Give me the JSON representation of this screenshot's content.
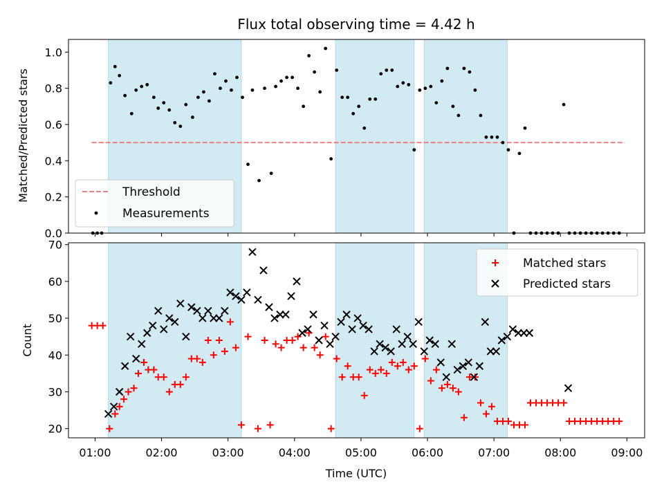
{
  "chart_data": [
    {
      "type": "scatter",
      "title": "Flux total observing time = 4.42 h",
      "xlabel": "",
      "ylabel": "Matched/Predicted stars",
      "xlim": [
        "00:36",
        "09:16"
      ],
      "ylim": [
        0.0,
        1.07
      ],
      "yticks": [
        "0.0",
        "0.2",
        "0.4",
        "0.6",
        "0.8",
        "1.0"
      ],
      "threshold": {
        "name": "Threshold",
        "value": 0.5,
        "x_range": [
          "00:57",
          "08:58"
        ],
        "color": "#f08080"
      },
      "shaded_intervals": [
        [
          "01:12",
          "03:12"
        ],
        [
          "04:37",
          "05:48"
        ],
        [
          "05:57",
          "07:12"
        ]
      ],
      "shade_color": "#add8e6",
      "legend": {
        "placement": "lower-left",
        "entries": [
          "Threshold",
          "Measurements"
        ]
      },
      "series": [
        {
          "name": "Measurements",
          "color": "#000000",
          "x": [
            "00:58",
            "01:02",
            "01:06",
            "01:14",
            "01:18",
            "01:22",
            "01:27",
            "01:33",
            "01:37",
            "01:42",
            "01:47",
            "01:53",
            "01:57",
            "02:02",
            "02:07",
            "02:12",
            "02:17",
            "02:22",
            "02:28",
            "02:33",
            "02:38",
            "02:43",
            "02:48",
            "02:53",
            "02:58",
            "03:03",
            "03:08",
            "03:13",
            "03:18",
            "03:22",
            "03:28",
            "03:33",
            "03:39",
            "03:43",
            "03:48",
            "03:53",
            "03:58",
            "04:03",
            "04:08",
            "04:13",
            "04:18",
            "04:23",
            "04:28",
            "04:33",
            "04:38",
            "04:43",
            "04:48",
            "04:53",
            "04:58",
            "05:03",
            "05:08",
            "05:13",
            "05:18",
            "05:23",
            "05:28",
            "05:33",
            "05:38",
            "05:43",
            "05:48",
            "05:53",
            "05:58",
            "06:03",
            "06:08",
            "06:13",
            "06:18",
            "06:23",
            "06:28",
            "06:33",
            "06:38",
            "06:43",
            "06:48",
            "06:53",
            "06:58",
            "07:03",
            "07:08",
            "07:13",
            "07:18",
            "07:23",
            "07:28",
            "07:33",
            "07:38",
            "07:43",
            "07:48",
            "07:53",
            "07:58",
            "08:03",
            "08:08",
            "08:13",
            "08:18",
            "08:23",
            "08:28",
            "08:33",
            "08:38",
            "08:43",
            "08:48",
            "08:53"
          ],
          "y": [
            0.0,
            0.0,
            0.0,
            0.83,
            0.92,
            0.87,
            0.76,
            0.66,
            0.79,
            0.81,
            0.82,
            0.75,
            0.69,
            0.72,
            0.68,
            0.61,
            0.59,
            0.71,
            0.64,
            0.75,
            0.78,
            0.73,
            0.88,
            0.8,
            0.84,
            0.79,
            0.86,
            0.75,
            0.38,
            0.79,
            0.29,
            0.8,
            0.33,
            0.81,
            0.84,
            0.86,
            0.86,
            0.8,
            0.7,
            0.98,
            0.89,
            0.78,
            1.02,
            0.41,
            0.9,
            0.75,
            0.75,
            0.66,
            0.7,
            0.58,
            0.74,
            0.74,
            0.88,
            0.9,
            0.9,
            0.81,
            0.83,
            0.82,
            0.46,
            0.79,
            0.8,
            0.81,
            0.72,
            0.84,
            0.91,
            0.7,
            0.65,
            0.91,
            0.89,
            0.79,
            0.65,
            0.53,
            0.53,
            0.53,
            0.5,
            0.46,
            0.0,
            0.44,
            0.58,
            0.0,
            0.0,
            0.0,
            0.0,
            0.0,
            0.0,
            0.71,
            0.0,
            0.0,
            0.0,
            0.0,
            0.0,
            0.0,
            0.0,
            0.0,
            0.0,
            0.0
          ]
        }
      ]
    },
    {
      "type": "scatter",
      "title": "",
      "xlabel": "Time (UTC)",
      "ylabel": "Count",
      "xlim": [
        "00:36",
        "09:16"
      ],
      "ylim": [
        17.5,
        70.5
      ],
      "xticks": [
        "01:00",
        "02:00",
        "03:00",
        "04:00",
        "05:00",
        "06:00",
        "07:00",
        "08:00",
        "09:00"
      ],
      "yticks": [
        "20",
        "30",
        "40",
        "50",
        "60",
        "70"
      ],
      "shaded_intervals": [
        [
          "01:12",
          "03:12"
        ],
        [
          "04:37",
          "05:48"
        ],
        [
          "05:57",
          "07:12"
        ]
      ],
      "shade_color": "#add8e6",
      "legend": {
        "placement": "top-right",
        "entries": [
          "Matched stars",
          "Predicted stars"
        ]
      },
      "series": [
        {
          "name": "Matched stars",
          "marker": "plus",
          "color": "#ff0000",
          "x": [
            "00:57",
            "01:02",
            "01:07",
            "01:13",
            "01:18",
            "01:22",
            "01:26",
            "01:30",
            "01:35",
            "01:39",
            "01:44",
            "01:48",
            "01:53",
            "01:57",
            "02:02",
            "02:07",
            "02:12",
            "02:17",
            "02:22",
            "02:27",
            "02:32",
            "02:37",
            "02:42",
            "02:47",
            "02:52",
            "02:57",
            "03:02",
            "03:07",
            "03:12",
            "03:18",
            "03:27",
            "03:33",
            "03:38",
            "03:43",
            "03:48",
            "03:53",
            "03:58",
            "04:03",
            "04:08",
            "04:13",
            "04:18",
            "04:23",
            "04:28",
            "04:33",
            "04:38",
            "04:43",
            "04:48",
            "04:53",
            "04:58",
            "05:03",
            "05:08",
            "05:13",
            "05:18",
            "05:23",
            "05:28",
            "05:33",
            "05:38",
            "05:43",
            "05:48",
            "05:53",
            "05:58",
            "06:03",
            "06:08",
            "06:13",
            "06:18",
            "06:23",
            "06:28",
            "06:33",
            "06:38",
            "06:43",
            "06:48",
            "06:53",
            "06:58",
            "07:03",
            "07:08",
            "07:13",
            "07:18",
            "07:23",
            "07:28",
            "07:33",
            "07:38",
            "07:43",
            "07:48",
            "07:53",
            "07:58",
            "08:03",
            "08:08",
            "08:13",
            "08:18",
            "08:23",
            "08:28",
            "08:33",
            "08:38",
            "08:43",
            "08:48",
            "08:53"
          ],
          "y": [
            48,
            48,
            48,
            20,
            24,
            26,
            28,
            30,
            31,
            35,
            38,
            36,
            36,
            34,
            34,
            30,
            32,
            32,
            34,
            39,
            39,
            38,
            44,
            40,
            44,
            41,
            49,
            42,
            21,
            45,
            20,
            44,
            21,
            43,
            42,
            44,
            44,
            45,
            42,
            46,
            42,
            40,
            45,
            20,
            39,
            34,
            37,
            34,
            34,
            29,
            36,
            35,
            36,
            35,
            38,
            37,
            38,
            36,
            37,
            20,
            39,
            33,
            36,
            31,
            32,
            31,
            30,
            23,
            34,
            34,
            27,
            24,
            26,
            22,
            22,
            22,
            21,
            21,
            21,
            27,
            27,
            27,
            27,
            27,
            27,
            27,
            22,
            22,
            22,
            22,
            22,
            22,
            22,
            22,
            22,
            22
          ]
        },
        {
          "name": "Predicted stars",
          "marker": "x",
          "color": "#000000",
          "x": [
            "01:12",
            "01:17",
            "01:22",
            "01:27",
            "01:32",
            "01:37",
            "01:42",
            "01:47",
            "01:52",
            "01:57",
            "02:02",
            "02:07",
            "02:12",
            "02:17",
            "02:22",
            "02:27",
            "02:32",
            "02:37",
            "02:42",
            "02:47",
            "02:52",
            "02:57",
            "03:02",
            "03:07",
            "03:12",
            "03:17",
            "03:22",
            "03:27",
            "03:32",
            "03:37",
            "03:42",
            "03:47",
            "03:52",
            "03:57",
            "04:02",
            "04:07",
            "04:12",
            "04:17",
            "04:22",
            "04:27",
            "04:32",
            "04:37",
            "04:42",
            "04:47",
            "04:52",
            "04:57",
            "05:02",
            "05:07",
            "05:12",
            "05:17",
            "05:22",
            "05:27",
            "05:32",
            "05:37",
            "05:42",
            "05:47",
            "05:52",
            "05:57",
            "06:02",
            "06:07",
            "06:12",
            "06:17",
            "06:22",
            "06:27",
            "06:32",
            "06:37",
            "06:42",
            "06:47",
            "06:52",
            "06:57",
            "07:02",
            "07:07",
            "07:12",
            "07:17",
            "07:22",
            "07:27",
            "07:32",
            "08:07"
          ],
          "y": [
            24,
            26,
            30,
            37,
            45,
            39,
            43,
            46,
            48,
            52,
            47,
            50,
            49,
            54,
            45,
            53,
            52,
            50,
            52,
            50,
            50,
            52,
            57,
            56,
            55,
            57,
            68,
            55,
            63,
            53,
            50,
            51,
            51,
            56,
            60,
            46,
            47,
            51,
            44,
            48,
            43,
            45,
            49,
            51,
            47,
            50,
            48,
            47,
            41,
            43,
            42,
            41,
            47,
            43,
            45,
            43,
            49,
            41,
            44,
            43,
            38,
            34,
            43,
            36,
            37,
            38,
            34,
            37,
            49,
            41,
            41,
            44,
            45,
            47,
            46,
            46,
            46,
            31
          ]
        }
      ]
    }
  ]
}
